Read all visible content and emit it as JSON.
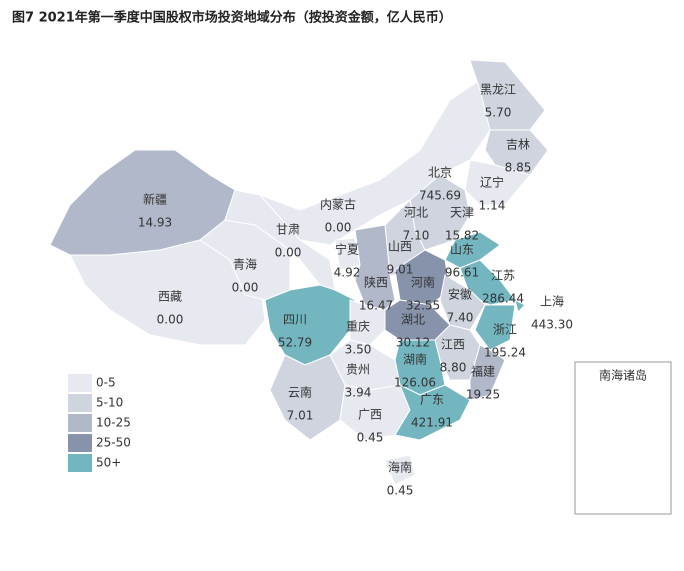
{
  "title": "图7 2021年第一季度中国股权市场投资地域分布（按投资金额，亿人民币）",
  "legend": [
    {
      "label": "0-5",
      "color": "#e6e9ef"
    },
    {
      "label": "5-10",
      "color": "#cfd4df"
    },
    {
      "label": "10-25",
      "color": "#b1b8c9"
    },
    {
      "label": "25-50",
      "color": "#8792ab"
    },
    {
      "label": "50+",
      "color": "#74b6c0"
    }
  ],
  "inset_label": "南海诸岛",
  "regions": [
    {
      "name": "新疆",
      "value": "14.93",
      "color": "#b1b8c9"
    },
    {
      "name": "西藏",
      "value": "0.00",
      "color": "#e6e9ef"
    },
    {
      "name": "青海",
      "value": "0.00",
      "color": "#e6e9ef"
    },
    {
      "name": "甘肃",
      "value": "0.00",
      "color": "#e6e9ef"
    },
    {
      "name": "内蒙古",
      "value": "0.00",
      "color": "#e6e9ef"
    },
    {
      "name": "黑龙江",
      "value": "5.70",
      "color": "#cfd4df"
    },
    {
      "name": "吉林",
      "value": "8.85",
      "color": "#cfd4df"
    },
    {
      "name": "辽宁",
      "value": "1.14",
      "color": "#e6e9ef"
    },
    {
      "name": "北京",
      "value": "745.69",
      "color": "#74b6c0"
    },
    {
      "name": "天津",
      "value": "15.82",
      "color": "#b1b8c9"
    },
    {
      "name": "河北",
      "value": "7.10",
      "color": "#cfd4df"
    },
    {
      "name": "宁夏",
      "value": "4.92",
      "color": "#e6e9ef"
    },
    {
      "name": "山西",
      "value": "9.01",
      "color": "#cfd4df"
    },
    {
      "name": "山东",
      "value": "96.61",
      "color": "#74b6c0"
    },
    {
      "name": "陕西",
      "value": "16.47",
      "color": "#b1b8c9"
    },
    {
      "name": "河南",
      "value": "32.55",
      "color": "#8792ab"
    },
    {
      "name": "江苏",
      "value": "286.44",
      "color": "#74b6c0"
    },
    {
      "name": "安徽",
      "value": "7.40",
      "color": "#cfd4df"
    },
    {
      "name": "上海",
      "value": "443.30",
      "color": "#74b6c0"
    },
    {
      "name": "湖北",
      "value": "30.12",
      "color": "#8792ab"
    },
    {
      "name": "浙江",
      "value": "195.24",
      "color": "#74b6c0"
    },
    {
      "name": "四川",
      "value": "52.79",
      "color": "#74b6c0"
    },
    {
      "name": "重庆",
      "value": "3.50",
      "color": "#e6e9ef"
    },
    {
      "name": "江西",
      "value": "8.80",
      "color": "#cfd4df"
    },
    {
      "name": "湖南",
      "value": "126.06",
      "color": "#74b6c0"
    },
    {
      "name": "贵州",
      "value": "3.94",
      "color": "#e6e9ef"
    },
    {
      "name": "福建",
      "value": "19.25",
      "color": "#b1b8c9"
    },
    {
      "name": "云南",
      "value": "7.01",
      "color": "#cfd4df"
    },
    {
      "name": "广西",
      "value": "0.45",
      "color": "#e6e9ef"
    },
    {
      "name": "广东",
      "value": "421.91",
      "color": "#74b6c0"
    },
    {
      "name": "海南",
      "value": "0.45",
      "color": "#e6e9ef"
    }
  ]
}
